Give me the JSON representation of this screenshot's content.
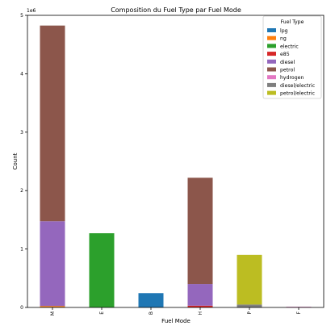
{
  "chart_data": {
    "type": "bar",
    "stacked": true,
    "title": "Composition du Fuel Type par Fuel Mode",
    "xlabel": "Fuel Mode",
    "ylabel": "Count",
    "y_offset_label": "1e6",
    "y_scale": 1000000,
    "ylim": [
      0,
      5
    ],
    "yticks": [
      "0",
      "1",
      "2",
      "3",
      "4",
      "5"
    ],
    "categories": [
      "M",
      "E",
      "B",
      "H",
      "P",
      "F"
    ],
    "grid": false,
    "legend_title": "Fuel Type",
    "legend_position": "upper right",
    "series": [
      {
        "name": "lpg",
        "color": "#1f77b4",
        "values": [
          0.005,
          0,
          0.245,
          0,
          0,
          0
        ]
      },
      {
        "name": "ng",
        "color": "#ff7f0e",
        "values": [
          0.02,
          0,
          0,
          0,
          0,
          0
        ]
      },
      {
        "name": "electric",
        "color": "#2ca02c",
        "values": [
          0,
          1.27,
          0,
          0,
          0,
          0
        ]
      },
      {
        "name": "e85",
        "color": "#d62728",
        "values": [
          0,
          0,
          0,
          0.03,
          0,
          0
        ]
      },
      {
        "name": "diesel",
        "color": "#9467bd",
        "values": [
          1.45,
          0,
          0,
          0.37,
          0,
          0
        ]
      },
      {
        "name": "petrol",
        "color": "#8c564b",
        "values": [
          3.35,
          0,
          0,
          1.82,
          0,
          0
        ]
      },
      {
        "name": "hydrogen",
        "color": "#e377c2",
        "values": [
          0,
          0,
          0,
          0,
          0,
          0.001
        ]
      },
      {
        "name": "diesel/electric",
        "color": "#7f7f7f",
        "values": [
          0,
          0,
          0,
          0,
          0.05,
          0
        ]
      },
      {
        "name": "petrol/electric",
        "color": "#bcbd22",
        "values": [
          0,
          0,
          0,
          0,
          0.85,
          0
        ]
      }
    ]
  }
}
